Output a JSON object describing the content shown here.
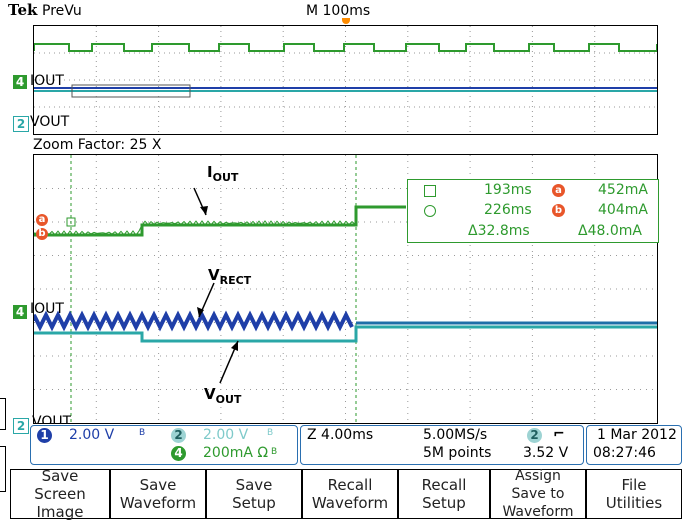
{
  "header": {
    "brand": "Tek",
    "mode": "PreVu",
    "timebase": "M 100ms"
  },
  "preview": {
    "ch4_label": "IOUT",
    "ch2_label": "VOUT"
  },
  "zoom": {
    "factor": "Zoom Factor: 25 X"
  },
  "annotations": {
    "iout": {
      "main": "I",
      "sub": "OUT"
    },
    "vrect": {
      "main": "V",
      "sub": "RECT"
    },
    "vout": {
      "main": "V",
      "sub": "OUT"
    }
  },
  "main_labels": {
    "ch4": "IOUT",
    "ch2": "VOUT"
  },
  "cursor_readout": {
    "t1": "193ms",
    "t2": "226ms",
    "dt": "Δ32.8ms",
    "a_val": "452mA",
    "b_val": "404mA",
    "dv": "Δ48.0mA",
    "a_letter": "a",
    "b_letter": "b"
  },
  "status": {
    "ch1_num": "1",
    "ch1_scale": "2.00 V",
    "ch2_num": "2",
    "ch2_scale": "2.00 V",
    "ch4_num": "4",
    "ch4_scale": "200mA Ω",
    "bw": "B",
    "zoom_time": "Z 4.00ms",
    "sample_rate": "5.00MS/s",
    "record": "5M points",
    "trig_ch": "2",
    "trig_level": "3.52 V",
    "date": "1 Mar 2012",
    "time": "08:27:46"
  },
  "softkeys": [
    {
      "label": "Save\nScreen Image"
    },
    {
      "label": "Save\nWaveform"
    },
    {
      "label": "Save\nSetup"
    },
    {
      "label": "Recall\nWaveform"
    },
    {
      "label": "Recall\nSetup"
    },
    {
      "label": "Assign\nSave to\nWaveform"
    },
    {
      "label": "File\nUtilities"
    }
  ],
  "colors": {
    "ch1": "#1f3fa8",
    "ch2": "#2aa7a7",
    "ch4": "#2e9a2e",
    "trigger": "#ff8c00",
    "cursor": "#e8562a"
  }
}
